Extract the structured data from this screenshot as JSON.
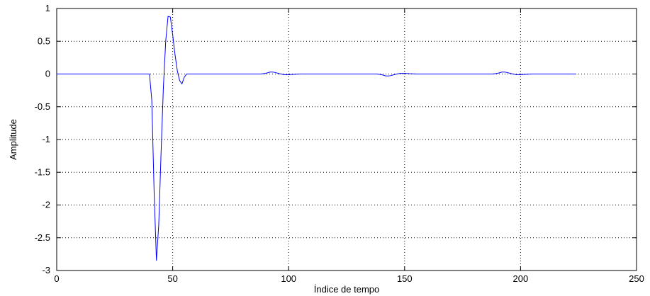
{
  "chart_data": {
    "type": "line",
    "title": "",
    "xlabel": "Índice de tempo",
    "ylabel": "Amplitude",
    "xlim": [
      0,
      250
    ],
    "ylim": [
      -3,
      1
    ],
    "xticks": [
      0,
      50,
      100,
      150,
      200,
      250
    ],
    "xtick_labels": [
      "0",
      "50",
      "100",
      "150",
      "200",
      "250"
    ],
    "yticks": [
      1,
      0.5,
      0,
      -0.5,
      -1,
      -1.5,
      -2,
      -2.5,
      -3
    ],
    "ytick_labels": [
      "1",
      "0.5",
      "0",
      "-0.5",
      "-1",
      "-1.5",
      "-2",
      "-2.5",
      "-3"
    ],
    "grid": true,
    "grid_style": "dotted",
    "line_color": "#0000ff",
    "series": [
      {
        "x": [
          0,
          38,
          39,
          40,
          41,
          42,
          43,
          44,
          45,
          46,
          47,
          48,
          49,
          50,
          51,
          52,
          53,
          54,
          55,
          56,
          57,
          60,
          88,
          90,
          92,
          93,
          94,
          96,
          98,
          100,
          102,
          105,
          138,
          140,
          142,
          143,
          144,
          146,
          148,
          150,
          152,
          155,
          188,
          190,
          192,
          193,
          194,
          196,
          198,
          200,
          202,
          205,
          224
        ],
        "y": [
          0,
          0,
          0,
          0,
          -0.4,
          -1.8,
          -2.85,
          -2.3,
          -1.2,
          -0.2,
          0.5,
          0.88,
          0.87,
          0.6,
          0.3,
          0.05,
          -0.1,
          -0.15,
          -0.05,
          0,
          0,
          0,
          0,
          0.01,
          0.03,
          0.03,
          0.025,
          0.005,
          -0.01,
          -0.01,
          -0.005,
          0,
          0,
          -0.01,
          -0.03,
          -0.03,
          -0.025,
          -0.005,
          0.01,
          0.01,
          0.005,
          0,
          0,
          0.01,
          0.03,
          0.03,
          0.025,
          0.005,
          -0.01,
          -0.01,
          -0.005,
          0,
          0
        ]
      }
    ]
  }
}
